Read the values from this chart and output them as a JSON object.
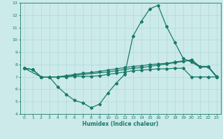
{
  "line1_x": [
    0,
    1,
    2,
    3,
    4,
    5,
    6,
    7,
    8,
    9,
    10,
    11,
    12,
    13,
    14,
    15,
    16,
    17,
    18,
    19,
    20,
    21,
    22,
    23
  ],
  "line1_y": [
    7.7,
    7.6,
    7.0,
    7.0,
    6.2,
    5.6,
    5.1,
    4.9,
    4.5,
    4.8,
    5.7,
    6.5,
    7.2,
    10.3,
    11.5,
    12.5,
    12.8,
    11.1,
    9.8,
    8.5,
    8.2,
    7.8,
    7.8,
    7.0
  ],
  "line2_x": [
    0,
    1,
    2,
    3,
    4,
    5,
    6,
    7,
    8,
    9,
    10,
    11,
    12,
    13,
    14,
    15,
    16,
    17,
    18,
    19,
    20,
    21,
    22,
    23
  ],
  "line2_y": [
    7.7,
    7.6,
    7.0,
    7.0,
    7.0,
    7.0,
    7.05,
    7.05,
    7.05,
    7.1,
    7.2,
    7.3,
    7.4,
    7.5,
    7.55,
    7.6,
    7.65,
    7.65,
    7.7,
    7.7,
    7.0,
    7.0,
    7.0,
    7.0
  ],
  "line3_x": [
    0,
    1,
    2,
    3,
    4,
    5,
    6,
    7,
    8,
    9,
    10,
    11,
    12,
    13,
    14,
    15,
    16,
    17,
    18,
    19,
    20,
    21,
    22,
    23
  ],
  "line3_y": [
    7.7,
    7.6,
    7.0,
    7.0,
    7.0,
    7.1,
    7.2,
    7.3,
    7.35,
    7.45,
    7.55,
    7.65,
    7.75,
    7.85,
    7.9,
    8.0,
    8.05,
    8.1,
    8.2,
    8.3,
    8.3,
    7.8,
    7.8,
    7.0
  ],
  "line4_x": [
    0,
    2,
    3,
    4,
    10,
    11,
    12,
    13,
    14,
    15,
    16,
    17,
    18,
    19,
    20,
    21,
    22,
    23
  ],
  "line4_y": [
    7.7,
    7.0,
    7.0,
    7.0,
    7.4,
    7.5,
    7.6,
    7.7,
    7.75,
    7.85,
    7.95,
    8.05,
    8.15,
    8.25,
    8.4,
    7.85,
    7.85,
    7.05
  ],
  "line_color": "#1a7a6a",
  "bg_color": "#cceaea",
  "grid_color": "#b0d8d8",
  "xlabel": "Humidex (Indice chaleur)",
  "xlim": [
    -0.5,
    23.5
  ],
  "ylim": [
    4,
    13
  ],
  "xticks": [
    0,
    1,
    2,
    3,
    4,
    5,
    6,
    7,
    8,
    9,
    10,
    11,
    12,
    13,
    14,
    15,
    16,
    17,
    18,
    19,
    20,
    21,
    22,
    23
  ],
  "yticks": [
    4,
    5,
    6,
    7,
    8,
    9,
    10,
    11,
    12,
    13
  ],
  "marker": "D",
  "markersize": 2.0,
  "linewidth": 0.9
}
